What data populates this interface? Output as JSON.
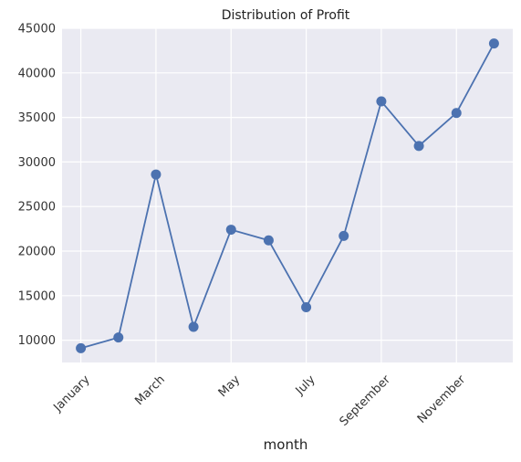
{
  "chart_data": {
    "type": "line",
    "title": "Distribution of Profit",
    "xlabel": "month",
    "ylabel": "",
    "x": [
      "January",
      "February",
      "March",
      "April",
      "May",
      "June",
      "July",
      "August",
      "September",
      "October",
      "November",
      "December"
    ],
    "x_tick_labels": [
      "January",
      "March",
      "May",
      "July",
      "September",
      "November"
    ],
    "x_tick_indices": [
      0,
      2,
      4,
      6,
      8,
      10
    ],
    "series": [
      {
        "values": [
          9100,
          10300,
          28600,
          11500,
          22400,
          21200,
          13700,
          21700,
          36800,
          31800,
          35500,
          43300
        ]
      }
    ],
    "ylim": [
      7500,
      45000
    ],
    "y_ticks": [
      10000,
      15000,
      20000,
      25000,
      30000,
      35000,
      40000,
      45000
    ],
    "grid": true,
    "colors": {
      "plot_background": "#eaeaf2",
      "grid": "#ffffff",
      "line": "#4c72b0",
      "marker": "#4c72b0"
    }
  }
}
